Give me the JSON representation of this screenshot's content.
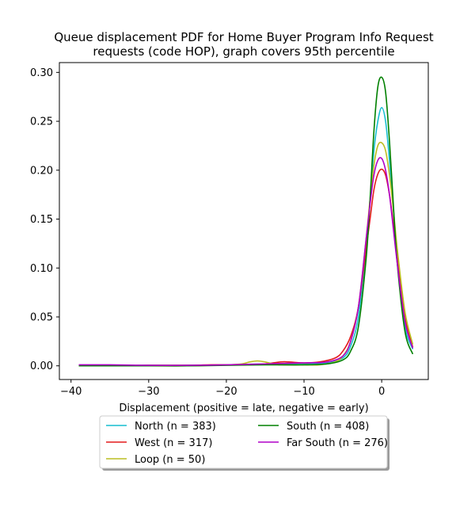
{
  "chart_data": {
    "type": "line",
    "title_line1": "Queue displacement PDF for Home Buyer Program Info Request",
    "title_line2": "requests (code HOP), graph covers 95th percentile",
    "xlabel": "Displacement (positive = late, negative = early)",
    "ylabel": "",
    "xlim": [
      -41.5,
      6
    ],
    "ylim": [
      -0.014,
      0.31
    ],
    "xticks": [
      -40,
      -30,
      -20,
      -10,
      0
    ],
    "xtick_labels": [
      "−40",
      "−30",
      "−20",
      "−10",
      "0"
    ],
    "yticks": [
      0.0,
      0.05,
      0.1,
      0.15,
      0.2,
      0.25,
      0.3
    ],
    "ytick_labels": [
      "0.00",
      "0.05",
      "0.10",
      "0.15",
      "0.20",
      "0.25",
      "0.30"
    ],
    "grid": false,
    "legend_position": "below plot, two columns",
    "series": [
      {
        "name": "North (n = 383)",
        "color": "#17becf",
        "x": [
          -39,
          -35,
          -30,
          -25,
          -20,
          -15,
          -10,
          -7,
          -5,
          -4,
          -3,
          -2,
          -1.5,
          -1,
          -0.5,
          0,
          0.5,
          1,
          1.5,
          2,
          3,
          4
        ],
        "y": [
          0.0,
          0.0,
          0.0005,
          0.0005,
          0.001,
          0.002,
          0.002,
          0.003,
          0.008,
          0.02,
          0.05,
          0.12,
          0.17,
          0.22,
          0.25,
          0.264,
          0.25,
          0.21,
          0.16,
          0.11,
          0.04,
          0.017
        ]
      },
      {
        "name": "West (n = 317)",
        "color": "#e31a1c",
        "x": [
          -39,
          -35,
          -30,
          -25,
          -22,
          -20,
          -17,
          -15,
          -13,
          -12,
          -10,
          -8,
          -6,
          -5,
          -4,
          -3,
          -2,
          -1.5,
          -1,
          -0.5,
          0,
          0.5,
          1,
          1.5,
          2,
          3,
          4
        ],
        "y": [
          0.0,
          0.0,
          0.0005,
          0.0005,
          0.001,
          0.001,
          0.001,
          0.002,
          0.004,
          0.004,
          0.003,
          0.004,
          0.008,
          0.015,
          0.03,
          0.06,
          0.12,
          0.15,
          0.18,
          0.196,
          0.201,
          0.195,
          0.175,
          0.145,
          0.11,
          0.05,
          0.019
        ]
      },
      {
        "name": "Loop (n = 50)",
        "color": "#bcbd22",
        "x": [
          -39,
          -35,
          -30,
          -25,
          -20,
          -18,
          -17,
          -16,
          -15,
          -14,
          -13,
          -10,
          -8,
          -6,
          -5,
          -4,
          -3,
          -2,
          -1.5,
          -1,
          -0.5,
          0,
          0.5,
          1,
          1.5,
          2,
          3,
          4
        ],
        "y": [
          0.0,
          0.0,
          0.0,
          0.0,
          0.001,
          0.002,
          0.004,
          0.005,
          0.004,
          0.002,
          0.001,
          0.001,
          0.001,
          0.004,
          0.01,
          0.025,
          0.06,
          0.13,
          0.17,
          0.205,
          0.225,
          0.228,
          0.22,
          0.195,
          0.16,
          0.12,
          0.055,
          0.022
        ]
      },
      {
        "name": "South (n = 408)",
        "color": "#008000",
        "x": [
          -39,
          -35,
          -30,
          -25,
          -20,
          -15,
          -10,
          -7,
          -5,
          -4,
          -3,
          -2,
          -1.5,
          -1,
          -0.5,
          0,
          0.5,
          1,
          1.5,
          2,
          3,
          4
        ],
        "y": [
          0.0,
          0.0,
          0.0,
          0.0,
          0.0005,
          0.001,
          0.001,
          0.002,
          0.006,
          0.015,
          0.04,
          0.11,
          0.17,
          0.24,
          0.285,
          0.295,
          0.28,
          0.23,
          0.165,
          0.105,
          0.035,
          0.012
        ]
      },
      {
        "name": "Far South (n = 276)",
        "color": "#b000c8",
        "x": [
          -39,
          -35,
          -30,
          -25,
          -20,
          -15,
          -10,
          -7,
          -5,
          -4,
          -3,
          -2,
          -1.5,
          -1,
          -0.5,
          0,
          0.5,
          1,
          1.5,
          2,
          3,
          4
        ],
        "y": [
          0.001,
          0.001,
          0.0005,
          0.0005,
          0.001,
          0.002,
          0.003,
          0.004,
          0.01,
          0.025,
          0.06,
          0.13,
          0.165,
          0.195,
          0.21,
          0.212,
          0.2,
          0.175,
          0.14,
          0.105,
          0.045,
          0.018
        ]
      }
    ]
  }
}
